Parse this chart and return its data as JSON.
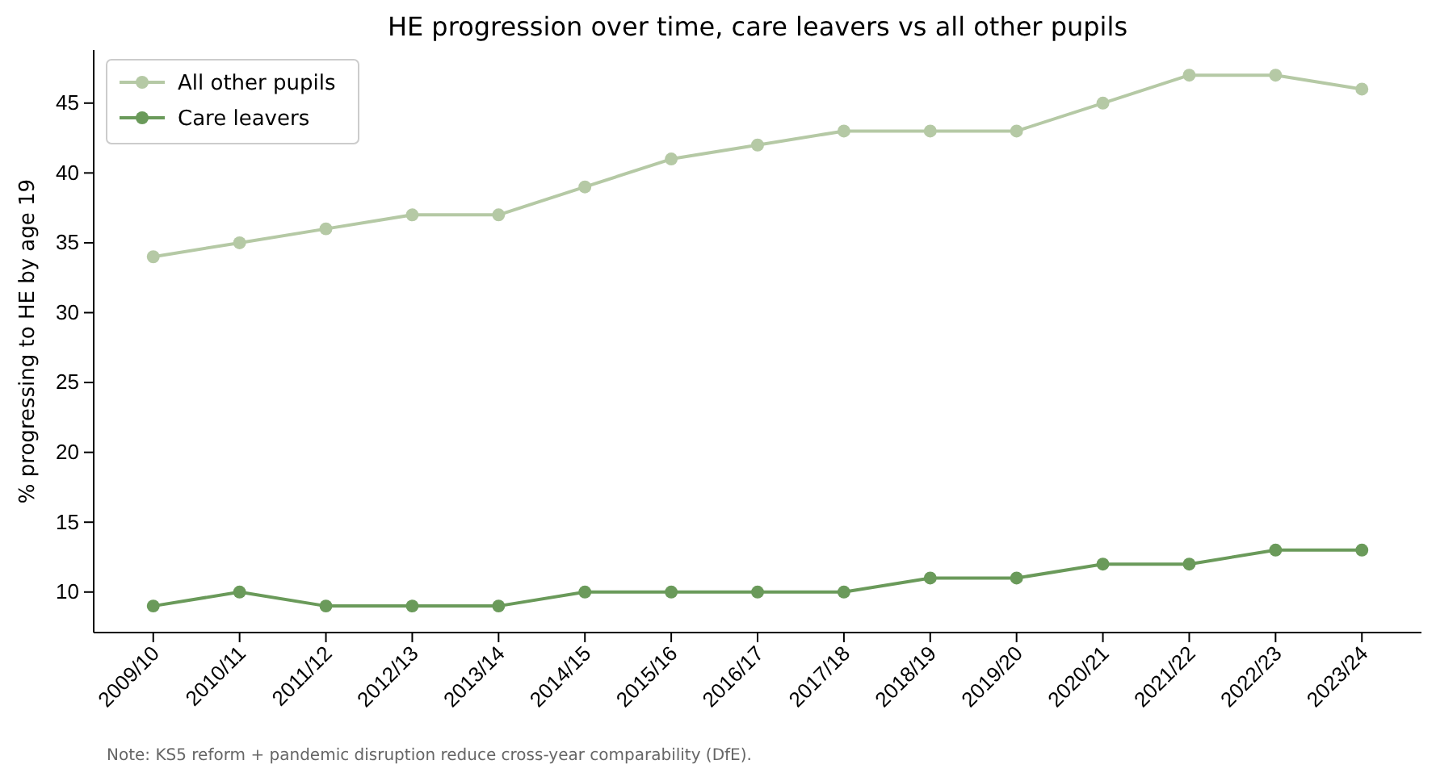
{
  "chart_data": {
    "type": "line",
    "title": "HE progression over time, care leavers vs all other pupils",
    "ylabel": "% progressing to HE by age 19",
    "categories": [
      "2009/10",
      "2010/11",
      "2011/12",
      "2012/13",
      "2013/14",
      "2014/15",
      "2015/16",
      "2016/17",
      "2017/18",
      "2018/19",
      "2019/20",
      "2020/21",
      "2021/22",
      "2022/23",
      "2023/24"
    ],
    "series": [
      {
        "name": "All other pupils",
        "color": "#b5c9a5",
        "values": [
          34,
          35,
          36,
          37,
          37,
          39,
          41,
          42,
          43,
          43,
          43,
          45,
          47,
          47,
          46
        ]
      },
      {
        "name": "Care leavers",
        "color": "#6a9a5a",
        "values": [
          9,
          10,
          9,
          9,
          9,
          10,
          10,
          10,
          10,
          11,
          11,
          12,
          12,
          13,
          13
        ]
      }
    ],
    "ylim": [
      7.1,
      48.8
    ],
    "yticks": [
      10,
      15,
      20,
      25,
      30,
      35,
      40,
      45
    ],
    "grid": false,
    "legend": "top left",
    "marker": "circle",
    "line_style": "solid",
    "annotations": [
      "Note: KS5 reform + pandemic disruption reduce cross-year comparability (DfE)."
    ]
  }
}
